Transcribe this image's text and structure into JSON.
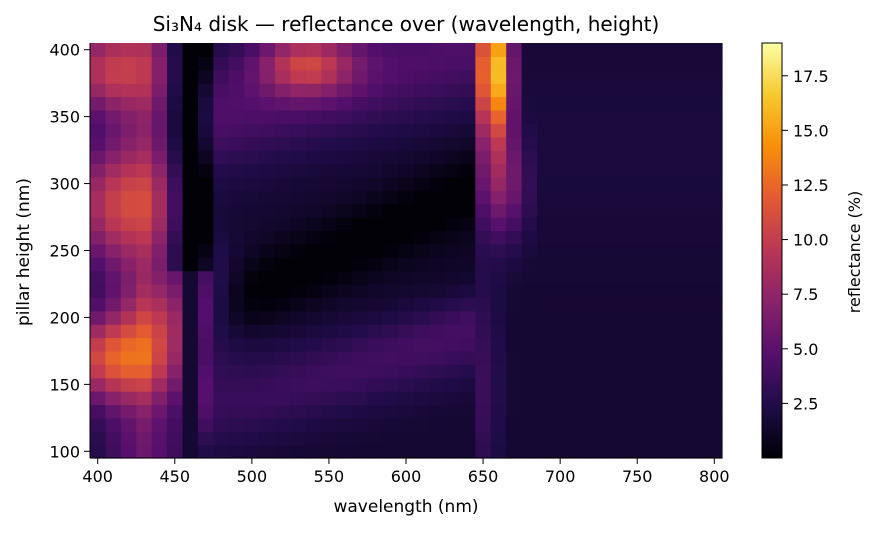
{
  "chart_data": {
    "type": "heatmap",
    "title": "Si₃N₄ disk — reflectance over (wavelength, height)",
    "xlabel": "wavelength (nm)",
    "ylabel": "pillar height (nm)",
    "colorbar_label": "reflectance (%)",
    "colormap": "inferno",
    "xlim": [
      395,
      805
    ],
    "ylim": [
      95,
      405
    ],
    "x_ticks": [
      400,
      450,
      500,
      550,
      600,
      650,
      700,
      750,
      800
    ],
    "y_ticks": [
      100,
      150,
      200,
      250,
      300,
      350,
      400
    ],
    "value_range": [
      0,
      19
    ],
    "colorbar_ticks": [
      2.5,
      5.0,
      7.5,
      10.0,
      12.5,
      15.0,
      17.5
    ],
    "grid": false,
    "features": [
      {
        "region": "left lobe, λ 395–450 nm, h 150–190 nm",
        "approx_value": 13
      },
      {
        "region": "left lobe, λ 395–440 nm, h 260–310 nm",
        "approx_value": 10
      },
      {
        "region": "top-left, λ 395–430 nm, h 360–405 nm",
        "approx_value": 10
      },
      {
        "region": "top, λ 520–560 nm, h 370–405 nm",
        "approx_value": 9
      },
      {
        "region": "hot spot, λ 650–665 nm, h 340–405 nm",
        "approx_value": 18
      },
      {
        "region": "dark band λ 455–465 nm, h 250–405 nm",
        "approx_value": 0.3
      },
      {
        "region": "dark diagonal valley from (470, 130) to (650, 260)",
        "approx_value": 0.5
      },
      {
        "region": "right background λ 700–800 nm",
        "approx_value": 1.8
      }
    ]
  }
}
